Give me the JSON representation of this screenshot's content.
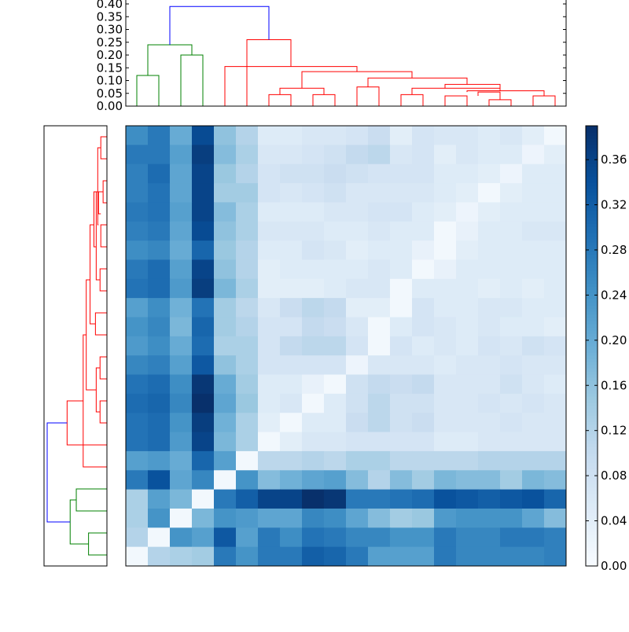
{
  "colors": {
    "cluster_above": "#0000ff",
    "cluster_a": "#ff0000",
    "cluster_b": "#008000",
    "colormap_low": "#f7fbff",
    "colormap_high": "#08306b"
  },
  "chart_data": [
    {
      "type": "heatmap",
      "name": "distance-matrix",
      "size": 20,
      "title": "",
      "xlabel": "",
      "ylabel": "",
      "colorbar": {
        "min": 0.0,
        "max": 0.39,
        "ticks": [
          0.0,
          0.04,
          0.08,
          0.12,
          0.16,
          0.2,
          0.24,
          0.28,
          0.32,
          0.36
        ],
        "tick_labels": [
          "0.00",
          "0.04",
          "0.08",
          "0.12",
          "0.16",
          "0.20",
          "0.24",
          "0.28",
          "0.32",
          "0.36"
        ]
      },
      "rows_top_to_bottom": [
        [
          0.25,
          0.28,
          0.2,
          0.35,
          0.16,
          0.12,
          0.05,
          0.05,
          0.06,
          0.06,
          0.07,
          0.09,
          0.04,
          0.07,
          0.06,
          0.06,
          0.05,
          0.06,
          0.04,
          0.01
        ],
        [
          0.28,
          0.28,
          0.22,
          0.37,
          0.17,
          0.13,
          0.06,
          0.06,
          0.07,
          0.08,
          0.1,
          0.11,
          0.06,
          0.07,
          0.04,
          0.06,
          0.05,
          0.05,
          0.02,
          0.04
        ],
        [
          0.27,
          0.3,
          0.21,
          0.36,
          0.15,
          0.12,
          0.07,
          0.08,
          0.08,
          0.09,
          0.08,
          0.07,
          0.07,
          0.07,
          0.05,
          0.05,
          0.04,
          0.02,
          0.05,
          0.05
        ],
        [
          0.27,
          0.29,
          0.21,
          0.36,
          0.14,
          0.14,
          0.07,
          0.06,
          0.07,
          0.08,
          0.06,
          0.06,
          0.06,
          0.06,
          0.05,
          0.04,
          0.01,
          0.04,
          0.05,
          0.05
        ],
        [
          0.28,
          0.29,
          0.22,
          0.36,
          0.17,
          0.13,
          0.05,
          0.05,
          0.05,
          0.06,
          0.06,
          0.07,
          0.07,
          0.05,
          0.04,
          0.02,
          0.04,
          0.05,
          0.05,
          0.05
        ],
        [
          0.27,
          0.28,
          0.21,
          0.35,
          0.16,
          0.13,
          0.06,
          0.06,
          0.06,
          0.05,
          0.05,
          0.06,
          0.05,
          0.05,
          0.01,
          0.03,
          0.05,
          0.05,
          0.06,
          0.06
        ],
        [
          0.25,
          0.26,
          0.2,
          0.31,
          0.15,
          0.12,
          0.05,
          0.05,
          0.07,
          0.06,
          0.04,
          0.05,
          0.05,
          0.03,
          0.01,
          0.04,
          0.05,
          0.05,
          0.05,
          0.05
        ],
        [
          0.28,
          0.3,
          0.22,
          0.36,
          0.16,
          0.12,
          0.04,
          0.05,
          0.05,
          0.05,
          0.05,
          0.06,
          0.05,
          0.01,
          0.03,
          0.05,
          0.05,
          0.05,
          0.05,
          0.05
        ],
        [
          0.29,
          0.3,
          0.23,
          0.37,
          0.18,
          0.13,
          0.04,
          0.04,
          0.04,
          0.05,
          0.06,
          0.06,
          0.01,
          0.05,
          0.05,
          0.05,
          0.04,
          0.05,
          0.04,
          0.05
        ],
        [
          0.22,
          0.25,
          0.19,
          0.29,
          0.14,
          0.11,
          0.06,
          0.09,
          0.11,
          0.1,
          0.04,
          0.04,
          0.01,
          0.07,
          0.05,
          0.05,
          0.06,
          0.06,
          0.05,
          0.05
        ],
        [
          0.24,
          0.26,
          0.18,
          0.31,
          0.14,
          0.12,
          0.07,
          0.07,
          0.1,
          0.09,
          0.06,
          0.01,
          0.05,
          0.07,
          0.06,
          0.05,
          0.06,
          0.05,
          0.05,
          0.04
        ],
        [
          0.23,
          0.25,
          0.2,
          0.3,
          0.13,
          0.13,
          0.07,
          0.1,
          0.11,
          0.11,
          0.07,
          0.01,
          0.07,
          0.05,
          0.06,
          0.05,
          0.07,
          0.06,
          0.08,
          0.07
        ],
        [
          0.26,
          0.27,
          0.22,
          0.33,
          0.16,
          0.13,
          0.07,
          0.07,
          0.07,
          0.07,
          0.02,
          0.06,
          0.06,
          0.06,
          0.05,
          0.06,
          0.06,
          0.07,
          0.06,
          0.06
        ],
        [
          0.29,
          0.3,
          0.25,
          0.38,
          0.2,
          0.14,
          0.05,
          0.05,
          0.03,
          0.01,
          0.08,
          0.1,
          0.09,
          0.1,
          0.06,
          0.06,
          0.06,
          0.08,
          0.06,
          0.05
        ],
        [
          0.3,
          0.31,
          0.26,
          0.39,
          0.21,
          0.15,
          0.05,
          0.06,
          0.01,
          0.05,
          0.08,
          0.11,
          0.08,
          0.08,
          0.06,
          0.06,
          0.07,
          0.06,
          0.07,
          0.06
        ],
        [
          0.29,
          0.3,
          0.24,
          0.37,
          0.19,
          0.13,
          0.04,
          0.01,
          0.05,
          0.05,
          0.09,
          0.11,
          0.08,
          0.09,
          0.06,
          0.06,
          0.06,
          0.07,
          0.06,
          0.06
        ],
        [
          0.29,
          0.3,
          0.23,
          0.36,
          0.18,
          0.13,
          0.01,
          0.04,
          0.06,
          0.06,
          0.07,
          0.07,
          0.07,
          0.07,
          0.05,
          0.05,
          0.06,
          0.06,
          0.06,
          0.06
        ],
        [
          0.22,
          0.23,
          0.2,
          0.31,
          0.22,
          0.01,
          0.11,
          0.11,
          0.12,
          0.11,
          0.13,
          0.13,
          0.11,
          0.11,
          0.11,
          0.11,
          0.12,
          0.12,
          0.12,
          0.12
        ],
        [
          0.28,
          0.34,
          0.21,
          0.26,
          0.01,
          0.24,
          0.17,
          0.19,
          0.21,
          0.22,
          0.17,
          0.12,
          0.17,
          0.14,
          0.18,
          0.17,
          0.17,
          0.14,
          0.18,
          0.17
        ],
        [
          0.13,
          0.22,
          0.18,
          0.01,
          0.28,
          0.32,
          0.36,
          0.36,
          0.39,
          0.38,
          0.28,
          0.28,
          0.29,
          0.3,
          0.34,
          0.33,
          0.32,
          0.33,
          0.34,
          0.31
        ]
      ],
      "rows_bottom_extra": [
        [
          0.13,
          0.24,
          0.01,
          0.18,
          0.24,
          0.23,
          0.21,
          0.21,
          0.26,
          0.25,
          0.21,
          0.17,
          0.14,
          0.15,
          0.23,
          0.24,
          0.24,
          0.24,
          0.21,
          0.17
        ],
        [
          0.12,
          0.01,
          0.24,
          0.22,
          0.33,
          0.22,
          0.28,
          0.25,
          0.29,
          0.28,
          0.26,
          0.26,
          0.24,
          0.24,
          0.28,
          0.26,
          0.26,
          0.28,
          0.28,
          0.27
        ],
        [
          0.01,
          0.12,
          0.13,
          0.14,
          0.28,
          0.24,
          0.28,
          0.28,
          0.32,
          0.31,
          0.28,
          0.22,
          0.22,
          0.22,
          0.28,
          0.26,
          0.26,
          0.26,
          0.26,
          0.27
        ]
      ]
    },
    {
      "type": "dendrogram",
      "name": "top-dendrogram",
      "orientation": "top",
      "y_axis": {
        "min": 0.0,
        "max": 0.4,
        "ticks": [
          0.0,
          0.05,
          0.1,
          0.15,
          0.2,
          0.25,
          0.3,
          0.35,
          0.4
        ],
        "tick_labels": [
          "0.00",
          "0.05",
          "0.10",
          "0.15",
          "0.20",
          "0.25",
          "0.30",
          "0.35",
          "0.40"
        ]
      },
      "links": [
        {
          "a": 0.5,
          "b": 1.5,
          "ha": 0.0,
          "hb": 0.0,
          "h": 0.12,
          "cluster": "b"
        },
        {
          "a": 2.5,
          "b": 3.5,
          "ha": 0.0,
          "hb": 0.0,
          "h": 0.2,
          "cluster": "b"
        },
        {
          "a": 1.0,
          "b": 3.0,
          "ha": 0.12,
          "hb": 0.2,
          "h": 0.24,
          "cluster": "b"
        },
        {
          "a": 6.5,
          "b": 7.5,
          "ha": 0.0,
          "hb": 0.0,
          "h": 0.045,
          "cluster": "a"
        },
        {
          "a": 8.5,
          "b": 9.5,
          "ha": 0.0,
          "hb": 0.0,
          "h": 0.045,
          "cluster": "a"
        },
        {
          "a": 7.0,
          "b": 9.0,
          "ha": 0.045,
          "hb": 0.045,
          "h": 0.07,
          "cluster": "a"
        },
        {
          "a": 10.5,
          "b": 11.5,
          "ha": 0.0,
          "hb": 0.0,
          "h": 0.075,
          "cluster": "a"
        },
        {
          "a": 12.5,
          "b": 13.5,
          "ha": 0.0,
          "hb": 0.0,
          "h": 0.045,
          "cluster": "a"
        },
        {
          "a": 14.5,
          "b": 15.5,
          "ha": 0.0,
          "hb": 0.0,
          "h": 0.04,
          "cluster": "a"
        },
        {
          "a": 16.5,
          "b": 17.5,
          "ha": 0.0,
          "hb": 0.0,
          "h": 0.025,
          "cluster": "a"
        },
        {
          "a": 16.0,
          "b": 17.0,
          "ha": 0.04,
          "hb": 0.025,
          "h": 0.055,
          "cluster": "a"
        },
        {
          "a": 18.5,
          "b": 19.5,
          "ha": 0.0,
          "hb": 0.0,
          "h": 0.04,
          "cluster": "a"
        },
        {
          "a": 15.5,
          "b": 19.0,
          "ha": 0.055,
          "hb": 0.04,
          "h": 0.06,
          "cluster": "a"
        },
        {
          "a": 13.0,
          "b": 17.0,
          "ha": 0.045,
          "hb": 0.06,
          "h": 0.07,
          "cluster": "a"
        },
        {
          "a": 14.5,
          "b": 17.0,
          "ha": 0.07,
          "hb": 0.07,
          "h": 0.085,
          "cluster": "a"
        },
        {
          "a": 11.0,
          "b": 15.5,
          "ha": 0.075,
          "hb": 0.085,
          "h": 0.11,
          "cluster": "a"
        },
        {
          "a": 8.0,
          "b": 13.0,
          "ha": 0.07,
          "hb": 0.11,
          "h": 0.135,
          "cluster": "a"
        },
        {
          "a": 4.5,
          "b": 10.5,
          "ha": 0.0,
          "hb": 0.135,
          "h": 0.155,
          "cluster": "a"
        },
        {
          "a": 5.5,
          "b": 7.5,
          "ha": 0.0,
          "hb": 0.155,
          "h": 0.26,
          "cluster": "a"
        },
        {
          "a": 2.0,
          "b": 6.5,
          "ha": 0.24,
          "hb": 0.26,
          "h": 0.39,
          "cluster": "above"
        }
      ]
    },
    {
      "type": "dendrogram",
      "name": "left-dendrogram",
      "orientation": "left",
      "links": [
        {
          "a": 0.5,
          "b": 1.5,
          "ha": 0.0,
          "hb": 0.0,
          "h": 0.12,
          "cluster": "b"
        },
        {
          "a": 2.5,
          "b": 3.5,
          "ha": 0.0,
          "hb": 0.0,
          "h": 0.2,
          "cluster": "b"
        },
        {
          "a": 1.0,
          "b": 3.0,
          "ha": 0.12,
          "hb": 0.2,
          "h": 0.24,
          "cluster": "b"
        },
        {
          "a": 6.5,
          "b": 7.5,
          "ha": 0.0,
          "hb": 0.0,
          "h": 0.045,
          "cluster": "a"
        },
        {
          "a": 8.5,
          "b": 9.5,
          "ha": 0.0,
          "hb": 0.0,
          "h": 0.045,
          "cluster": "a"
        },
        {
          "a": 7.0,
          "b": 9.0,
          "ha": 0.045,
          "hb": 0.045,
          "h": 0.07,
          "cluster": "a"
        },
        {
          "a": 10.5,
          "b": 11.5,
          "ha": 0.0,
          "hb": 0.0,
          "h": 0.075,
          "cluster": "a"
        },
        {
          "a": 12.5,
          "b": 13.5,
          "ha": 0.0,
          "hb": 0.0,
          "h": 0.045,
          "cluster": "a"
        },
        {
          "a": 14.5,
          "b": 15.5,
          "ha": 0.0,
          "hb": 0.0,
          "h": 0.04,
          "cluster": "a"
        },
        {
          "a": 16.5,
          "b": 17.5,
          "ha": 0.0,
          "hb": 0.0,
          "h": 0.025,
          "cluster": "a"
        },
        {
          "a": 16.0,
          "b": 17.0,
          "ha": 0.04,
          "hb": 0.025,
          "h": 0.055,
          "cluster": "a"
        },
        {
          "a": 18.5,
          "b": 19.5,
          "ha": 0.0,
          "hb": 0.0,
          "h": 0.04,
          "cluster": "a"
        },
        {
          "a": 15.5,
          "b": 19.0,
          "ha": 0.055,
          "hb": 0.04,
          "h": 0.06,
          "cluster": "a"
        },
        {
          "a": 13.0,
          "b": 17.0,
          "ha": 0.045,
          "hb": 0.06,
          "h": 0.07,
          "cluster": "a"
        },
        {
          "a": 14.5,
          "b": 17.0,
          "ha": 0.07,
          "hb": 0.07,
          "h": 0.085,
          "cluster": "a"
        },
        {
          "a": 11.0,
          "b": 15.5,
          "ha": 0.075,
          "hb": 0.085,
          "h": 0.11,
          "cluster": "a"
        },
        {
          "a": 8.0,
          "b": 13.0,
          "ha": 0.07,
          "hb": 0.11,
          "h": 0.135,
          "cluster": "a"
        },
        {
          "a": 4.5,
          "b": 10.5,
          "ha": 0.0,
          "hb": 0.135,
          "h": 0.155,
          "cluster": "a"
        },
        {
          "a": 5.5,
          "b": 7.5,
          "ha": 0.0,
          "hb": 0.155,
          "h": 0.26,
          "cluster": "a"
        },
        {
          "a": 2.0,
          "b": 6.5,
          "ha": 0.24,
          "hb": 0.26,
          "h": 0.39,
          "cluster": "above"
        }
      ]
    }
  ]
}
